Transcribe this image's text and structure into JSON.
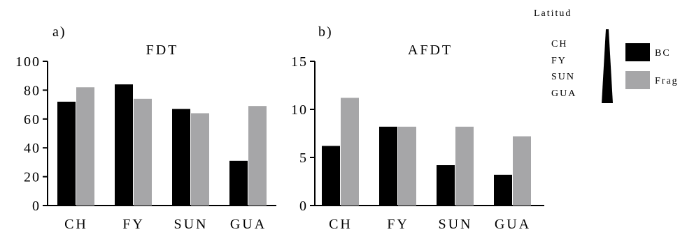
{
  "chart_data": [
    {
      "type": "bar",
      "panel_label": "a)",
      "title": "FDT",
      "categories": [
        "CH",
        "FY",
        "SUN",
        "GUA"
      ],
      "series": [
        {
          "name": "BC",
          "values": [
            72,
            84,
            67,
            31
          ]
        },
        {
          "name": "Frag",
          "values": [
            82,
            74,
            64,
            69
          ]
        }
      ],
      "y_ticks": [
        "0",
        "20",
        "40",
        "60",
        "80",
        "100"
      ],
      "ylim": [
        0,
        100
      ],
      "xlabel": "",
      "ylabel": "",
      "grid": false
    },
    {
      "type": "bar",
      "panel_label": "b)",
      "title": "AFDT",
      "categories": [
        "CH",
        "FY",
        "SUN",
        "GUA"
      ],
      "series": [
        {
          "name": "BC",
          "values": [
            6.2,
            8.2,
            4.2,
            3.2
          ]
        },
        {
          "name": "Frag",
          "values": [
            11.2,
            8.2,
            8.2,
            7.2
          ]
        }
      ],
      "y_ticks": [
        "0",
        "5",
        "10",
        "15"
      ],
      "ylim": [
        0,
        15
      ],
      "xlabel": "",
      "ylabel": "",
      "grid": false
    }
  ],
  "latitude_key": {
    "title": "Latitud",
    "sites": [
      "CH",
      "FY",
      "SUN",
      "GUA"
    ]
  },
  "legend": {
    "placement": "right",
    "items": [
      {
        "name": "BC",
        "color": "#000000"
      },
      {
        "name": "Frag",
        "color": "#a6a6a8"
      }
    ]
  },
  "colors": {
    "BC": "#000000",
    "Frag": "#a6a6a8"
  }
}
